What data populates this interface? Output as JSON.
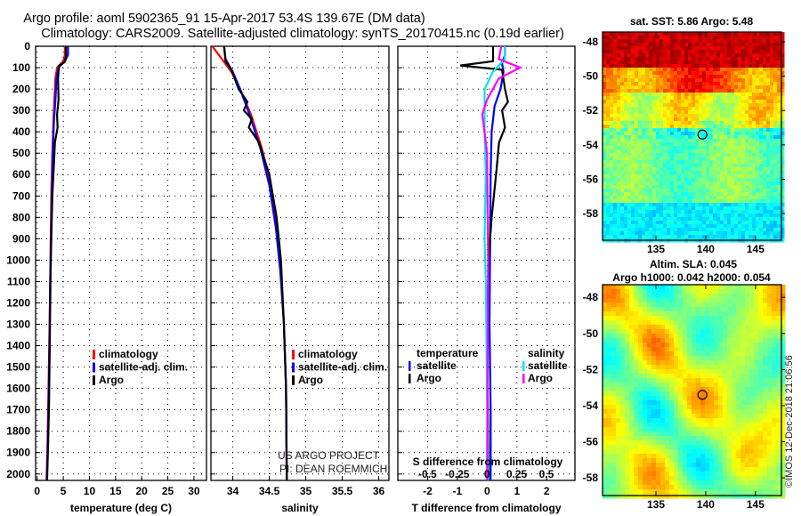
{
  "title_line1": "Argo profile: aoml 5902365_91 15-Apr-2017 53.4S 139.67E (DM data)",
  "title_line2": "Climatology: CARS2009. Satellite-adjusted climatology: synTS_20170415.nc (0.19d earlier)",
  "credit": "US ARGO PROJECT",
  "pi": "PI: DEAN ROEMMICH",
  "stamp": "©IMOS 12-Dec-2018 21:06:56",
  "colors": {
    "climatology": "#ff0000",
    "satellite": "#0000ff",
    "argo": "#000000",
    "sal_satellite": "#00e5e5",
    "sal_argo": "#ff00ff"
  },
  "chart_data": [
    {
      "type": "line",
      "xlabel": "temperature (deg C)",
      "xlim": [
        -0.3,
        32.4
      ],
      "ylim": [
        2030,
        0
      ],
      "xticks": [
        "0",
        "5",
        "10",
        "15",
        "20",
        "25",
        "30"
      ],
      "xtick_values": [
        0,
        5,
        10,
        15,
        20,
        25,
        30
      ],
      "yticks": [
        "0",
        "100",
        "200",
        "300",
        "400",
        "500",
        "600",
        "700",
        "800",
        "900",
        "1000",
        "1100",
        "1200",
        "1300",
        "1400",
        "1500",
        "1600",
        "1700",
        "1800",
        "1900",
        "2000"
      ],
      "ytick_values": [
        0,
        100,
        200,
        300,
        400,
        500,
        600,
        700,
        800,
        900,
        1000,
        1100,
        1200,
        1300,
        1400,
        1500,
        1600,
        1700,
        1800,
        1900,
        2000
      ],
      "legend": [
        "climatology",
        "satellite-adj. clim.",
        "Argo"
      ],
      "series": [
        {
          "name": "climatology",
          "color": "#ff0000",
          "x": [
            5.3,
            5.3,
            5.0,
            3.8,
            3.5,
            3.3,
            3.1,
            2.9,
            2.7,
            2.6,
            2.5,
            2.3,
            2.1,
            1.95,
            1.8
          ],
          "y": [
            0,
            40,
            70,
            100,
            150,
            250,
            350,
            500,
            700,
            900,
            1100,
            1400,
            1700,
            1900,
            2030
          ]
        },
        {
          "name": "satellite-adj. clim.",
          "color": "#0000ff",
          "x": [
            5.9,
            5.9,
            5.3,
            4.1,
            3.7,
            3.5,
            3.2,
            3.0,
            2.8,
            2.65,
            2.5,
            2.35,
            2.15,
            2.0,
            1.85
          ],
          "y": [
            0,
            40,
            70,
            100,
            150,
            250,
            350,
            500,
            700,
            900,
            1100,
            1400,
            1700,
            1900,
            2030
          ]
        },
        {
          "name": "Argo",
          "color": "#000000",
          "x": [
            5.5,
            5.5,
            5.2,
            4.2,
            4.0,
            4.1,
            3.8,
            3.9,
            3.4,
            3.2,
            2.9,
            2.7,
            2.55,
            2.4,
            2.25,
            2.05,
            1.9
          ],
          "y": [
            0,
            50,
            75,
            90,
            150,
            250,
            320,
            380,
            450,
            550,
            700,
            900,
            1100,
            1400,
            1700,
            1900,
            2030
          ]
        }
      ]
    },
    {
      "type": "line",
      "xlabel": "salinity",
      "xlim": [
        33.7,
        36.14
      ],
      "ylim": [
        2030,
        0
      ],
      "xticks": [
        "34",
        "34.5",
        "35",
        "35.5",
        "36"
      ],
      "xtick_values": [
        34,
        34.5,
        35,
        35.5,
        36
      ],
      "legend": [
        "climatology",
        "satellite-adj. clim.",
        "Argo"
      ],
      "series": [
        {
          "name": "climatology",
          "color": "#ff0000",
          "x": [
            33.72,
            33.85,
            33.98,
            34.1,
            34.25,
            34.4,
            34.52,
            34.6,
            34.66,
            34.7,
            34.73,
            34.74
          ],
          "y": [
            0,
            60,
            120,
            200,
            320,
            480,
            650,
            850,
            1050,
            1300,
            1600,
            2030
          ]
        },
        {
          "name": "satellite-adj. clim.",
          "color": "#0000ff",
          "x": [
            33.88,
            33.9,
            34.0,
            34.1,
            34.23,
            34.38,
            34.5,
            34.59,
            34.65,
            34.7,
            34.73,
            34.74
          ],
          "y": [
            0,
            60,
            120,
            200,
            320,
            480,
            650,
            850,
            1050,
            1300,
            1600,
            2030
          ]
        },
        {
          "name": "Argo",
          "color": "#000000",
          "x": [
            33.88,
            33.9,
            33.98,
            34.08,
            34.2,
            34.15,
            34.26,
            34.22,
            34.36,
            34.5,
            34.6,
            34.66,
            34.7,
            34.73,
            34.74
          ],
          "y": [
            0,
            70,
            110,
            200,
            260,
            300,
            340,
            380,
            450,
            600,
            800,
            1000,
            1300,
            1600,
            2030
          ]
        }
      ]
    },
    {
      "type": "line",
      "xlabel": "T difference from climatology",
      "x2label": "S difference from climatology",
      "xlim": [
        -3.0,
        2.95
      ],
      "x2lim": [
        -0.75,
        0.74
      ],
      "ylim": [
        2030,
        0
      ],
      "xticks": [
        "-2",
        "-1",
        "0",
        "1",
        "2"
      ],
      "xtick_values": [
        -2,
        -1,
        0,
        1,
        2
      ],
      "x2ticks": [
        "-0.5",
        "-0.25",
        "0",
        "0.25",
        "0.5"
      ],
      "x2tick_values": [
        -0.5,
        -0.25,
        0,
        0.25,
        0.5
      ],
      "legend_temperature_title": "temperature",
      "legend_salinity_title": "salinity",
      "legend_temperature": [
        "satellite",
        "Argo"
      ],
      "legend_salinity": [
        "satellite",
        "Argo"
      ],
      "series": [
        {
          "name": "temperature satellite",
          "color": "#0000ff",
          "axis": "T",
          "x": [
            0.6,
            0.6,
            0.5,
            0.55,
            0.45,
            0.25,
            0.15,
            0.12,
            0.1,
            0.08,
            0.12,
            0.12
          ],
          "y": [
            0,
            40,
            80,
            120,
            200,
            280,
            400,
            600,
            900,
            1300,
            1700,
            2030
          ]
        },
        {
          "name": "temperature Argo",
          "color": "#000000",
          "axis": "T",
          "x": [
            0.2,
            0.2,
            -0.9,
            0.5,
            0.6,
            0.7,
            0.5,
            0.6,
            0.4,
            0.3,
            0.15,
            0.05,
            0.0,
            0.02,
            0.05
          ],
          "y": [
            0,
            70,
            90,
            110,
            200,
            260,
            300,
            380,
            450,
            600,
            800,
            1000,
            1300,
            1700,
            2030
          ]
        },
        {
          "name": "salinity satellite",
          "color": "#00e5e5",
          "axis": "S",
          "x": [
            0.15,
            0.15,
            0.05,
            -0.02,
            -0.02,
            -0.01,
            -0.02,
            -0.01,
            0.0,
            0.01
          ],
          "y": [
            0,
            60,
            120,
            200,
            400,
            600,
            900,
            1100,
            1600,
            2030
          ]
        },
        {
          "name": "salinity Argo",
          "color": "#ff00ff",
          "axis": "S",
          "x": [
            0.12,
            0.1,
            0.28,
            0.1,
            0.0,
            -0.04,
            -0.02,
            0.0,
            0.01,
            0.0
          ],
          "y": [
            0,
            60,
            100,
            150,
            250,
            320,
            400,
            500,
            1000,
            2030
          ]
        }
      ]
    },
    {
      "type": "heatmap",
      "title": "sat. SST: 5.86 Argo: 5.48",
      "xticks": [
        "135",
        "140",
        "145"
      ],
      "xtick_values": [
        135,
        140,
        145
      ],
      "yticks": [
        "-48",
        "-50",
        "-52",
        "-54",
        "-56",
        "-58"
      ],
      "ytick_values": [
        -48,
        -50,
        -52,
        -54,
        -56,
        -58
      ],
      "xlim": [
        129.64,
        147.6
      ],
      "ylim": [
        -59.55,
        -47.43
      ],
      "marker": {
        "lon": 139.67,
        "lat": -53.4
      }
    },
    {
      "type": "heatmap",
      "title": "Altim. SLA: 0.045",
      "subtitle": "Argo h1000: 0.042 h2000: 0.054",
      "xticks": [
        "135",
        "140",
        "145"
      ],
      "xtick_values": [
        135,
        140,
        145
      ],
      "yticks": [
        "-48",
        "-50",
        "-52",
        "-54",
        "-56",
        "-58"
      ],
      "ytick_values": [
        -48,
        -50,
        -52,
        -54,
        -56,
        -58
      ],
      "xlim": [
        129.64,
        147.6
      ],
      "ylim": [
        -58.98,
        -47.3
      ],
      "marker": {
        "lon": 139.67,
        "lat": -53.4
      }
    }
  ]
}
